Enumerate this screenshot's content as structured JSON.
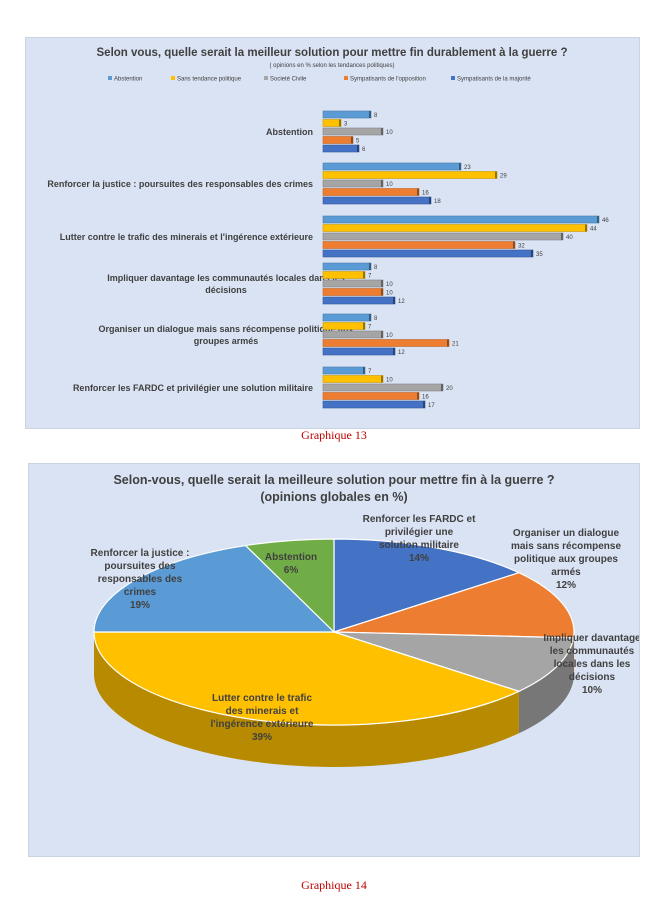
{
  "charts": [
    {
      "type": "bar",
      "orientation": "horizontal",
      "title": "Selon vous, quelle serait la meilleur solution pour mettre fin durablement à la guerre ?",
      "subtitle": "( opinions en % selon les tendances politiques)",
      "legend_position": "top",
      "categories": [
        "Abstention",
        "Renforcer la justice : poursuites des responsables des crimes",
        "Lutter contre le trafic des minerais et l'ingérence extérieure",
        "Impliquer davantage les communautés locales dans les décisions",
        "Organiser un dialogue mais sans récompense politique aux groupes armés",
        "Renforcer les FARDC et privilégier une solution militaire"
      ],
      "series": [
        {
          "name": "Abstention",
          "color": "#5b9bd5",
          "values": [
            8,
            23,
            46,
            8,
            8,
            7
          ]
        },
        {
          "name": "Sans tendance politique",
          "color": "#ffc000",
          "values": [
            3,
            29,
            44,
            7,
            7,
            10
          ]
        },
        {
          "name": "Societé Civile",
          "color": "#a5a5a5",
          "values": [
            10,
            10,
            40,
            10,
            10,
            20
          ]
        },
        {
          "name": "Sympatisants de l'opposition",
          "color": "#ed7d31",
          "values": [
            5,
            16,
            32,
            10,
            21,
            16
          ]
        },
        {
          "name": "Sympatisants de la majorité",
          "color": "#4472c4",
          "values": [
            6,
            18,
            35,
            12,
            12,
            17
          ]
        }
      ],
      "caption": "Graphique 13"
    },
    {
      "type": "pie",
      "3d": true,
      "title": "Selon-vous, quelle serait la meilleure solution pour mettre fin à la guerre ?",
      "subtitle": "(opinions globales en %)",
      "slices": [
        {
          "label": "Renforcer les FARDC et privilégier une solution militaire",
          "value": 14,
          "color": "#4472c4"
        },
        {
          "label": "Organiser un dialogue mais sans récompense politique aux groupes armés",
          "value": 12,
          "color": "#ed7d31"
        },
        {
          "label": "Impliquer davantage les communautés locales dans les décisions",
          "value": 10,
          "color": "#a5a5a5"
        },
        {
          "label": "Lutter contre le trafic des minerais et l'ingérence extérieure",
          "value": 39,
          "color": "#ffc000"
        },
        {
          "label": "Renforcer la justice : poursuites des responsables des crimes",
          "value": 19,
          "color": "#5b9bd5"
        },
        {
          "label": "Abstention",
          "value": 6,
          "color": "#70ad47"
        }
      ],
      "caption": "Graphique 14"
    }
  ]
}
